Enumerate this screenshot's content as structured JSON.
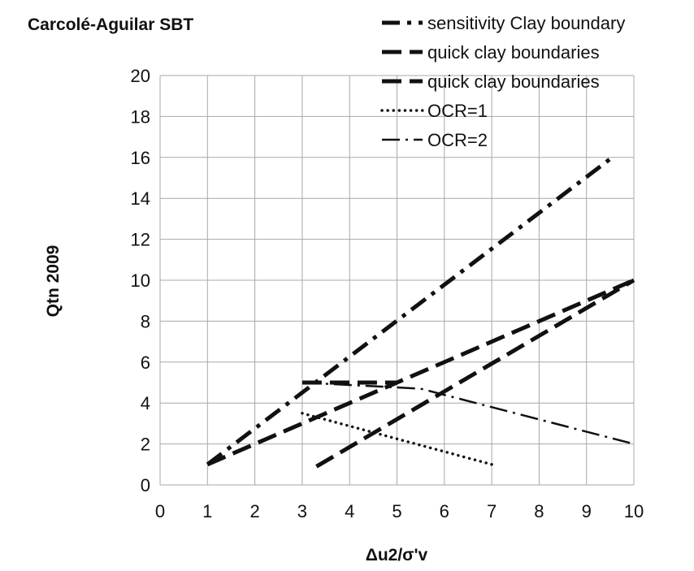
{
  "chart_data": {
    "type": "line",
    "title": "Carcolé-Aguilar SBT",
    "xlabel": "Δu2/σ'v",
    "ylabel": "Qtn 2009",
    "xlim": [
      0,
      10
    ],
    "ylim": [
      0,
      20
    ],
    "x_ticks": [
      "0",
      "1",
      "2",
      "3",
      "4",
      "5",
      "6",
      "7",
      "8",
      "9",
      "10"
    ],
    "y_ticks": [
      "0",
      "2",
      "4",
      "6",
      "8",
      "10",
      "12",
      "14",
      "16",
      "18",
      "20"
    ],
    "grid": true,
    "legend_position": "top-right",
    "series": [
      {
        "name": "sensitivity Clay boundary",
        "style": "dash-dot-heavy",
        "points": [
          [
            1,
            1
          ],
          [
            9.6,
            16.1
          ]
        ]
      },
      {
        "name": "quick clay boundaries",
        "style": "dash-heavy",
        "points": [
          [
            1,
            1
          ],
          [
            10,
            10
          ]
        ]
      },
      {
        "name": "quick clay boundaries",
        "style": "dash-heavy",
        "points": [
          [
            3.3,
            0.9
          ],
          [
            10,
            10
          ]
        ]
      },
      {
        "name": "OCR=1",
        "style": "dotted",
        "points": [
          [
            3,
            3.5
          ],
          [
            7,
            1
          ]
        ]
      },
      {
        "name": "OCR=2",
        "style": "long-dash-dot",
        "points": [
          [
            3,
            5
          ],
          [
            5.5,
            4.7
          ],
          [
            10,
            2
          ]
        ]
      }
    ],
    "unlabeled_series": [
      {
        "style": "dash-heavy",
        "points": [
          [
            3,
            5
          ],
          [
            5,
            5
          ]
        ]
      }
    ]
  }
}
